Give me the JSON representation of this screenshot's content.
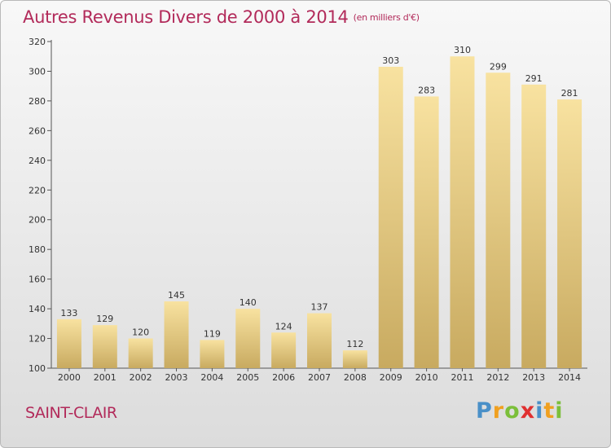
{
  "title": "Autres Revenus Divers de 2000 à 2014",
  "unit": "(en milliers d'€)",
  "city": "SAINT-CLAIR",
  "brand": "Proxiti",
  "colors": {
    "title": "#b22a5a",
    "bar_light": "#f7df9a",
    "bar_dark": "#c9ac62"
  },
  "chart_data": {
    "type": "bar",
    "categories": [
      "2000",
      "2001",
      "2002",
      "2003",
      "2004",
      "2005",
      "2006",
      "2007",
      "2008",
      "2009",
      "2010",
      "2011",
      "2012",
      "2013",
      "2014"
    ],
    "values": [
      133,
      129,
      120,
      145,
      119,
      140,
      124,
      137,
      112,
      303,
      283,
      310,
      299,
      291,
      281
    ],
    "ylim": [
      100,
      320
    ],
    "yticks": [
      100,
      120,
      140,
      160,
      180,
      200,
      220,
      240,
      260,
      280,
      300,
      320
    ],
    "grid": false,
    "legend": "none"
  }
}
